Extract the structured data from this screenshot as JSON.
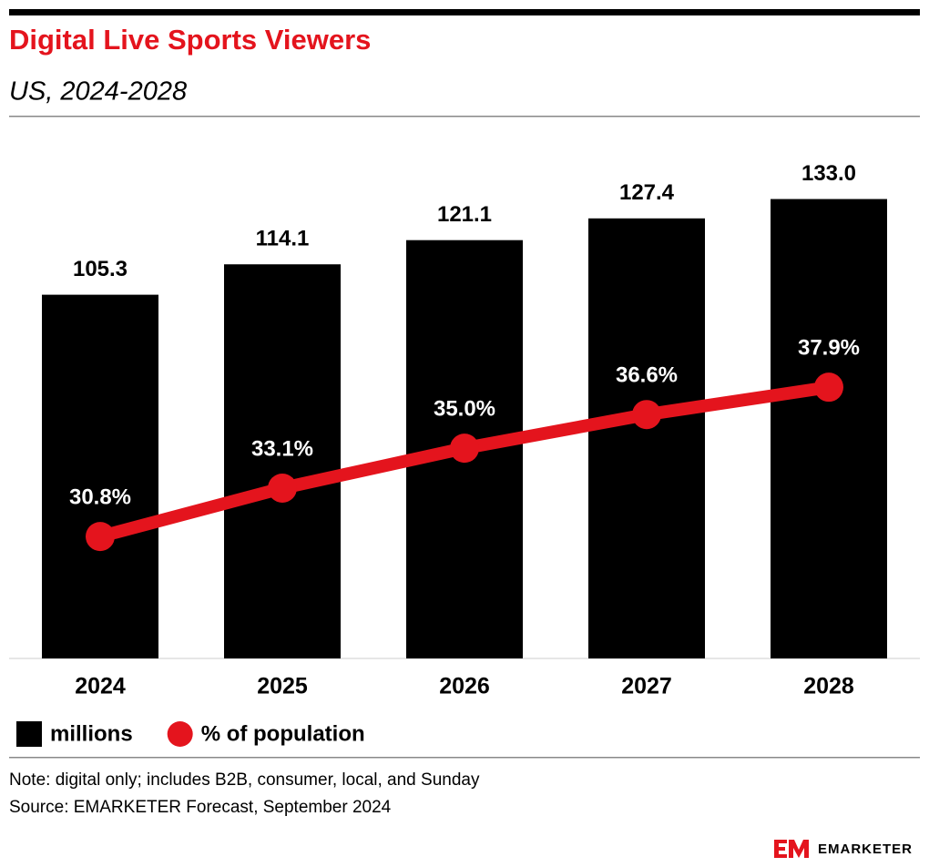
{
  "chart_data": {
    "type": "bar",
    "title": "Digital Live Sports Viewers",
    "subtitle": "US, 2024-2028",
    "categories": [
      "2024",
      "2025",
      "2026",
      "2027",
      "2028"
    ],
    "series": [
      {
        "name": "millions",
        "type": "bar",
        "color": "#000000",
        "values": [
          105.3,
          114.1,
          121.1,
          127.4,
          133.0
        ],
        "value_labels": [
          "105.3",
          "114.1",
          "121.1",
          "127.4",
          "133.0"
        ]
      },
      {
        "name": "% of population",
        "type": "line",
        "axis": "y2",
        "color": "#e4141d",
        "values": [
          30.8,
          33.1,
          35.0,
          36.6,
          37.9
        ],
        "value_labels": [
          "30.8%",
          "33.1%",
          "35.0%",
          "36.6%",
          "37.9%"
        ]
      }
    ],
    "ylim": [
      0,
      140
    ],
    "y2lim": [
      25,
      48
    ],
    "note": "Note: digital only; includes B2B, consumer, local, and Sunday",
    "source": "Source: EMARKETER Forecast, September 2024",
    "logo": "EMARKETER"
  }
}
